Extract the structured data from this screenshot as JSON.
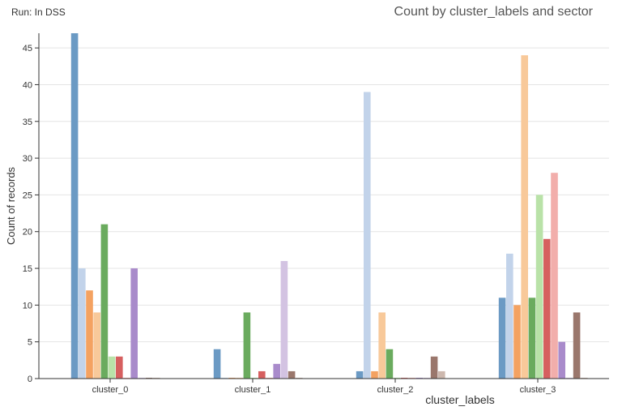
{
  "header": {
    "run_label": "Run: In DSS"
  },
  "chart_data": {
    "type": "bar",
    "title": "Count by cluster_labels and sector",
    "xlabel": "cluster_labels",
    "ylabel": "Count of records",
    "ylim": [
      0,
      47
    ],
    "yticks": [
      0,
      5,
      10,
      15,
      20,
      25,
      30,
      35,
      40,
      45
    ],
    "grid": true,
    "legend": "none",
    "categories": [
      "cluster_0",
      "cluster_1",
      "cluster_2",
      "cluster_3"
    ],
    "series": [
      {
        "color": "#6b9ac4",
        "values": [
          47,
          4,
          1,
          11
        ]
      },
      {
        "color": "#c2d3ea",
        "values": [
          15,
          0,
          39,
          17
        ]
      },
      {
        "color": "#f4a261",
        "values": [
          12,
          0,
          1,
          10
        ]
      },
      {
        "color": "#f8c99a",
        "values": [
          9,
          0,
          9,
          44
        ]
      },
      {
        "color": "#6aab5e",
        "values": [
          21,
          9,
          4,
          11
        ]
      },
      {
        "color": "#b9e2a8",
        "values": [
          3,
          0,
          0,
          25
        ]
      },
      {
        "color": "#d65f5f",
        "values": [
          3,
          1,
          0,
          19
        ]
      },
      {
        "color": "#f2aeab",
        "values": [
          0,
          0,
          0,
          28
        ]
      },
      {
        "color": "#a98bcb",
        "values": [
          15,
          2,
          0,
          5
        ]
      },
      {
        "color": "#d3c3e2",
        "values": [
          0,
          16,
          0,
          0
        ]
      },
      {
        "color": "#9a776c",
        "values": [
          0,
          1,
          3,
          9
        ]
      },
      {
        "color": "#cdb8ae",
        "values": [
          0,
          0,
          1,
          0
        ]
      }
    ]
  }
}
